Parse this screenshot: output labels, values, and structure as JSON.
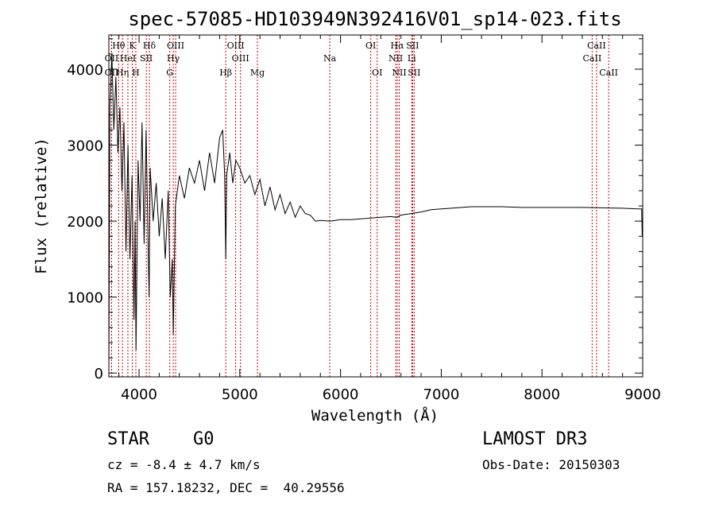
{
  "chart_data": {
    "type": "line",
    "title": "spec-57085-HD103949N392416V01_sp14-023.fits",
    "xlabel": "Wavelength (Å)",
    "ylabel": "Flux (relative)",
    "xlim": [
      3700,
      9000
    ],
    "ylim": [
      -50,
      4450
    ],
    "x_ticks": [
      4000,
      5000,
      6000,
      7000,
      8000,
      9000
    ],
    "y_ticks": [
      0,
      1000,
      2000,
      3000,
      4000
    ],
    "grid": false,
    "series": [
      {
        "name": "flux",
        "x": [
          3700,
          3710,
          3730,
          3750,
          3770,
          3790,
          3810,
          3830,
          3850,
          3870,
          3890,
          3910,
          3930,
          3950,
          3960,
          3970,
          3990,
          4010,
          4030,
          4050,
          4070,
          4090,
          4100,
          4110,
          4140,
          4170,
          4200,
          4230,
          4260,
          4290,
          4310,
          4330,
          4340,
          4360,
          4400,
          4450,
          4500,
          4550,
          4600,
          4650,
          4700,
          4750,
          4800,
          4830,
          4850,
          4861,
          4870,
          4900,
          4930,
          4960,
          5000,
          5050,
          5100,
          5150,
          5200,
          5250,
          5300,
          5350,
          5400,
          5450,
          5500,
          5550,
          5600,
          5650,
          5700,
          5750,
          5800,
          5900,
          6000,
          6100,
          6200,
          6300,
          6400,
          6500,
          6560,
          6600,
          6700,
          6800,
          6900,
          7000,
          7100,
          7200,
          7300,
          7400,
          7500,
          7600,
          7800,
          8000,
          8200,
          8400,
          8600,
          8800,
          8950,
          8990,
          8995
        ],
        "y": [
          0,
          3500,
          4200,
          3200,
          3900,
          2900,
          3500,
          2400,
          3300,
          1600,
          3000,
          1500,
          2600,
          700,
          2000,
          300,
          2800,
          2000,
          3300,
          1700,
          3200,
          1700,
          1000,
          2700,
          2000,
          2500,
          1800,
          2300,
          1500,
          2400,
          1000,
          1500,
          500,
          2200,
          2600,
          2300,
          2700,
          2500,
          2800,
          2400,
          2900,
          2500,
          3100,
          3200,
          2600,
          1500,
          2600,
          2900,
          2500,
          2800,
          2700,
          2500,
          2600,
          2350,
          2550,
          2200,
          2450,
          2150,
          2350,
          2100,
          2250,
          2050,
          2200,
          2100,
          2080,
          2000,
          2010,
          2000,
          2020,
          2020,
          2030,
          2040,
          2050,
          2060,
          2050,
          2080,
          2100,
          2120,
          2150,
          2160,
          2170,
          2180,
          2190,
          2190,
          2190,
          2190,
          2180,
          2180,
          2180,
          2180,
          2175,
          2170,
          2160,
          2160,
          1800
        ]
      }
    ],
    "lines": [
      {
        "label": "Hθ",
        "wl": 3797,
        "row": 0
      },
      {
        "label": "OII",
        "wl": 3727,
        "row": 1
      },
      {
        "label": "OII",
        "wl": 3727,
        "row": 2
      },
      {
        "label": "Hη",
        "wl": 3835,
        "row": 2
      },
      {
        "label": "HeI",
        "wl": 3889,
        "row": 1
      },
      {
        "label": "K",
        "wl": 3934,
        "row": 0
      },
      {
        "label": "H",
        "wl": 3968,
        "row": 2
      },
      {
        "label": "SII",
        "wl": 4072,
        "row": 1
      },
      {
        "label": "Hδ",
        "wl": 4102,
        "row": 0
      },
      {
        "label": "G",
        "wl": 4305,
        "row": 2
      },
      {
        "label": "OIII",
        "wl": 4363,
        "row": 0
      },
      {
        "label": "Hγ",
        "wl": 4340,
        "row": 1
      },
      {
        "label": "Hβ",
        "wl": 4861,
        "row": 2
      },
      {
        "label": "OIII",
        "wl": 4959,
        "row": 0
      },
      {
        "label": "OIII",
        "wl": 5007,
        "row": 1
      },
      {
        "label": "Mg",
        "wl": 5175,
        "row": 2
      },
      {
        "label": "Na",
        "wl": 5893,
        "row": 1
      },
      {
        "label": "OI",
        "wl": 6300,
        "row": 0
      },
      {
        "label": "OI",
        "wl": 6364,
        "row": 2
      },
      {
        "label": "Hα",
        "wl": 6563,
        "row": 0
      },
      {
        "label": "NII",
        "wl": 6548,
        "row": 1
      },
      {
        "label": "NII",
        "wl": 6583,
        "row": 2
      },
      {
        "label": "SII",
        "wl": 6716,
        "row": 0
      },
      {
        "label": "Li",
        "wl": 6707,
        "row": 1
      },
      {
        "label": "SII",
        "wl": 6731,
        "row": 2
      },
      {
        "label": "CaII",
        "wl": 8498,
        "row": 1
      },
      {
        "label": "CaII",
        "wl": 8542,
        "row": 0
      },
      {
        "label": "CaII",
        "wl": 8662,
        "row": 2
      }
    ]
  },
  "info": {
    "object_type": "STAR",
    "subclass": "G0",
    "survey": "LAMOST DR3",
    "cz": "cz = -8.4 ± 4.7 km/s",
    "obs_date": "Obs-Date: 20150303",
    "coords": "RA = 157.18232, DEC =  40.29556"
  },
  "colors": {
    "spectrum": "#000000",
    "line_marker": "#cc0000",
    "background": "#ffffff"
  }
}
